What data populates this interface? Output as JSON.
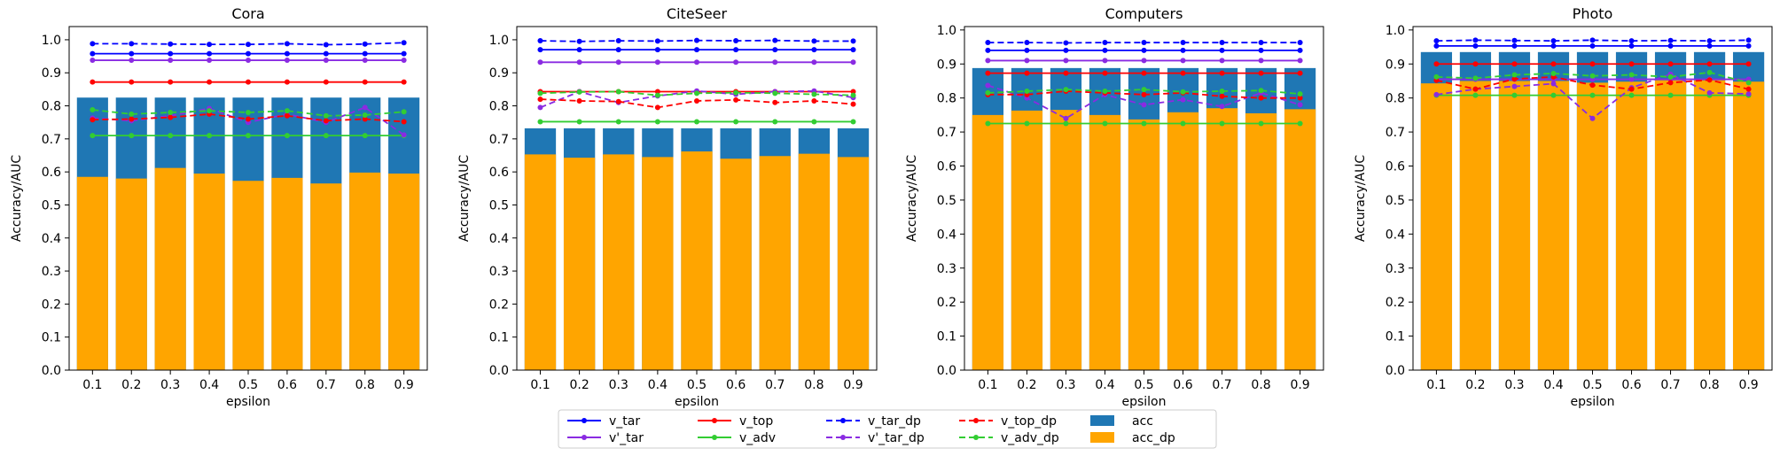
{
  "legend": {
    "items": [
      {
        "label": "v_tar",
        "color": "#0000ff",
        "style": "solid",
        "marker": "dot"
      },
      {
        "label": "v'_tar",
        "color": "#8a2be2",
        "style": "solid",
        "marker": "dot"
      },
      {
        "label": "v_top",
        "color": "#ff0000",
        "style": "solid",
        "marker": "dot"
      },
      {
        "label": "v_adv",
        "color": "#32cd32",
        "style": "solid",
        "marker": "dot"
      },
      {
        "label": "v_tar_dp",
        "color": "#0000ff",
        "style": "dashed",
        "marker": "dot"
      },
      {
        "label": "v'_tar_dp",
        "color": "#8a2be2",
        "style": "dashed",
        "marker": "dot"
      },
      {
        "label": "v_top_dp",
        "color": "#ff0000",
        "style": "dashed",
        "marker": "dot"
      },
      {
        "label": "v_adv_dp",
        "color": "#32cd32",
        "style": "dashed",
        "marker": "dot"
      },
      {
        "label": "acc",
        "color": "#1f77b4",
        "style": "patch"
      },
      {
        "label": "acc_dp",
        "color": "#ffa500",
        "style": "patch"
      }
    ],
    "placement": "bottom-center"
  },
  "chart_data": [
    {
      "type": "bar",
      "title": "Cora",
      "xlabel": "epsilon",
      "ylabel": "Accuracy/AUC",
      "categories": [
        "0.1",
        "0.2",
        "0.3",
        "0.4",
        "0.5",
        "0.6",
        "0.7",
        "0.8",
        "0.9"
      ],
      "ylim": [
        0,
        1.04
      ],
      "yticks": [
        "0.0",
        "0.1",
        "0.2",
        "0.3",
        "0.4",
        "0.5",
        "0.6",
        "0.7",
        "0.8",
        "0.9",
        "1.0"
      ],
      "grid": false,
      "bars": [
        {
          "name": "acc",
          "color": "#1f77b4",
          "values": [
            0.825,
            0.825,
            0.825,
            0.825,
            0.825,
            0.825,
            0.825,
            0.825,
            0.825
          ]
        },
        {
          "name": "acc_dp",
          "color": "#ffa500",
          "values": [
            0.585,
            0.58,
            0.612,
            0.595,
            0.573,
            0.582,
            0.565,
            0.598,
            0.595
          ]
        }
      ],
      "lines": [
        {
          "name": "v_tar",
          "color": "#0000ff",
          "dashed": false,
          "values": [
            0.958,
            0.958,
            0.958,
            0.958,
            0.958,
            0.958,
            0.958,
            0.958,
            0.958
          ]
        },
        {
          "name": "v'_tar",
          "color": "#8a2be2",
          "dashed": false,
          "values": [
            0.938,
            0.938,
            0.938,
            0.938,
            0.938,
            0.938,
            0.938,
            0.938,
            0.938
          ]
        },
        {
          "name": "v_top",
          "color": "#ff0000",
          "dashed": false,
          "values": [
            0.872,
            0.872,
            0.872,
            0.872,
            0.872,
            0.872,
            0.872,
            0.872,
            0.872
          ]
        },
        {
          "name": "v_adv",
          "color": "#32cd32",
          "dashed": false,
          "values": [
            0.71,
            0.71,
            0.71,
            0.71,
            0.71,
            0.71,
            0.71,
            0.71,
            0.71
          ]
        },
        {
          "name": "v_tar_dp",
          "color": "#0000ff",
          "dashed": true,
          "values": [
            0.988,
            0.988,
            0.987,
            0.986,
            0.986,
            0.988,
            0.985,
            0.987,
            0.991
          ]
        },
        {
          "name": "v'_tar_dp",
          "color": "#8a2be2",
          "dashed": true,
          "values": [
            0.763,
            0.755,
            0.77,
            0.792,
            0.75,
            0.775,
            0.75,
            0.795,
            0.712
          ]
        },
        {
          "name": "v_top_dp",
          "color": "#ff0000",
          "dashed": true,
          "values": [
            0.758,
            0.76,
            0.765,
            0.775,
            0.76,
            0.77,
            0.755,
            0.76,
            0.752
          ]
        },
        {
          "name": "v_adv_dp",
          "color": "#32cd32",
          "dashed": true,
          "values": [
            0.788,
            0.775,
            0.78,
            0.785,
            0.78,
            0.785,
            0.77,
            0.772,
            0.782
          ]
        }
      ]
    },
    {
      "type": "bar",
      "title": "CiteSeer",
      "xlabel": "epsilon",
      "ylabel": "Accuracy/AUC",
      "categories": [
        "0.1",
        "0.2",
        "0.3",
        "0.4",
        "0.5",
        "0.6",
        "0.7",
        "0.8",
        "0.9"
      ],
      "ylim": [
        0,
        1.04
      ],
      "yticks": [
        "0.0",
        "0.1",
        "0.2",
        "0.3",
        "0.4",
        "0.5",
        "0.6",
        "0.7",
        "0.8",
        "0.9",
        "1.0"
      ],
      "grid": false,
      "bars": [
        {
          "name": "acc",
          "color": "#1f77b4",
          "values": [
            0.732,
            0.732,
            0.732,
            0.732,
            0.732,
            0.732,
            0.732,
            0.732,
            0.732
          ]
        },
        {
          "name": "acc_dp",
          "color": "#ffa500",
          "values": [
            0.653,
            0.643,
            0.653,
            0.645,
            0.662,
            0.64,
            0.648,
            0.655,
            0.645
          ]
        }
      ],
      "lines": [
        {
          "name": "v_tar",
          "color": "#0000ff",
          "dashed": false,
          "values": [
            0.97,
            0.97,
            0.97,
            0.97,
            0.97,
            0.97,
            0.97,
            0.97,
            0.97
          ]
        },
        {
          "name": "v'_tar",
          "color": "#8a2be2",
          "dashed": false,
          "values": [
            0.932,
            0.932,
            0.932,
            0.932,
            0.932,
            0.932,
            0.932,
            0.932,
            0.932
          ]
        },
        {
          "name": "v_top",
          "color": "#ff0000",
          "dashed": false,
          "values": [
            0.843,
            0.843,
            0.843,
            0.843,
            0.843,
            0.843,
            0.843,
            0.843,
            0.843
          ]
        },
        {
          "name": "v_adv",
          "color": "#32cd32",
          "dashed": false,
          "values": [
            0.752,
            0.752,
            0.752,
            0.752,
            0.752,
            0.752,
            0.752,
            0.752,
            0.752
          ]
        },
        {
          "name": "v_tar_dp",
          "color": "#0000ff",
          "dashed": true,
          "values": [
            0.997,
            0.995,
            0.997,
            0.996,
            0.998,
            0.997,
            0.998,
            0.996,
            0.996
          ]
        },
        {
          "name": "v'_tar_dp",
          "color": "#8a2be2",
          "dashed": true,
          "values": [
            0.795,
            0.843,
            0.81,
            0.83,
            0.845,
            0.835,
            0.843,
            0.845,
            0.825
          ]
        },
        {
          "name": "v_top_dp",
          "color": "#ff0000",
          "dashed": true,
          "values": [
            0.82,
            0.815,
            0.813,
            0.795,
            0.815,
            0.818,
            0.81,
            0.815,
            0.805
          ]
        },
        {
          "name": "v_adv_dp",
          "color": "#32cd32",
          "dashed": true,
          "values": [
            0.838,
            0.842,
            0.843,
            0.832,
            0.838,
            0.84,
            0.838,
            0.835,
            0.832
          ]
        }
      ]
    },
    {
      "type": "bar",
      "title": "Computers",
      "xlabel": "epsilon",
      "ylabel": "Accuracy/AUC",
      "categories": [
        "0.1",
        "0.2",
        "0.3",
        "0.4",
        "0.5",
        "0.6",
        "0.7",
        "0.8",
        "0.9"
      ],
      "ylim": [
        0,
        1.01
      ],
      "yticks": [
        "0.0",
        "0.1",
        "0.2",
        "0.3",
        "0.4",
        "0.5",
        "0.6",
        "0.7",
        "0.8",
        "0.9",
        "1.0"
      ],
      "grid": false,
      "bars": [
        {
          "name": "acc",
          "color": "#1f77b4",
          "values": [
            0.888,
            0.888,
            0.888,
            0.888,
            0.888,
            0.888,
            0.888,
            0.888,
            0.888
          ]
        },
        {
          "name": "acc_dp",
          "color": "#ffa500",
          "values": [
            0.75,
            0.763,
            0.765,
            0.75,
            0.737,
            0.758,
            0.77,
            0.755,
            0.767
          ]
        }
      ],
      "lines": [
        {
          "name": "v_tar",
          "color": "#0000ff",
          "dashed": false,
          "values": [
            0.94,
            0.94,
            0.94,
            0.94,
            0.94,
            0.94,
            0.94,
            0.94,
            0.94
          ]
        },
        {
          "name": "v'_tar",
          "color": "#8a2be2",
          "dashed": false,
          "values": [
            0.91,
            0.91,
            0.91,
            0.91,
            0.91,
            0.91,
            0.91,
            0.91,
            0.91
          ]
        },
        {
          "name": "v_top",
          "color": "#ff0000",
          "dashed": false,
          "values": [
            0.873,
            0.873,
            0.873,
            0.873,
            0.873,
            0.873,
            0.873,
            0.873,
            0.873
          ]
        },
        {
          "name": "v_adv",
          "color": "#32cd32",
          "dashed": false,
          "values": [
            0.725,
            0.725,
            0.725,
            0.725,
            0.725,
            0.725,
            0.725,
            0.725,
            0.725
          ]
        },
        {
          "name": "v_tar_dp",
          "color": "#0000ff",
          "dashed": true,
          "values": [
            0.963,
            0.963,
            0.962,
            0.963,
            0.963,
            0.963,
            0.963,
            0.963,
            0.963
          ]
        },
        {
          "name": "v'_tar_dp",
          "color": "#8a2be2",
          "dashed": true,
          "values": [
            0.837,
            0.8,
            0.74,
            0.81,
            0.78,
            0.795,
            0.775,
            0.815,
            0.78
          ]
        },
        {
          "name": "v_top_dp",
          "color": "#ff0000",
          "dashed": true,
          "values": [
            0.81,
            0.81,
            0.82,
            0.815,
            0.81,
            0.815,
            0.805,
            0.8,
            0.8
          ]
        },
        {
          "name": "v_adv_dp",
          "color": "#32cd32",
          "dashed": true,
          "values": [
            0.815,
            0.82,
            0.825,
            0.82,
            0.825,
            0.818,
            0.82,
            0.822,
            0.812
          ]
        }
      ]
    },
    {
      "type": "bar",
      "title": "Photo",
      "xlabel": "epsilon",
      "ylabel": "Accuracy/AUC",
      "categories": [
        "0.1",
        "0.2",
        "0.3",
        "0.4",
        "0.5",
        "0.6",
        "0.7",
        "0.8",
        "0.9"
      ],
      "ylim": [
        0,
        1.01
      ],
      "yticks": [
        "0.0",
        "0.1",
        "0.2",
        "0.3",
        "0.4",
        "0.5",
        "0.6",
        "0.7",
        "0.8",
        "0.9",
        "1.0"
      ],
      "grid": false,
      "bars": [
        {
          "name": "acc",
          "color": "#1f77b4",
          "values": [
            0.935,
            0.935,
            0.935,
            0.935,
            0.935,
            0.935,
            0.935,
            0.935,
            0.935
          ]
        },
        {
          "name": "acc_dp",
          "color": "#ffa500",
          "values": [
            0.843,
            0.85,
            0.85,
            0.85,
            0.845,
            0.848,
            0.852,
            0.852,
            0.848
          ]
        }
      ],
      "lines": [
        {
          "name": "v_tar",
          "color": "#0000ff",
          "dashed": false,
          "values": [
            0.953,
            0.953,
            0.953,
            0.953,
            0.953,
            0.953,
            0.953,
            0.953,
            0.953
          ]
        },
        {
          "name": "v'_tar",
          "color": "#8a2be2",
          "dashed": false,
          "values": [
            0.855,
            0.855,
            0.855,
            0.855,
            0.855,
            0.855,
            0.855,
            0.855,
            0.855
          ]
        },
        {
          "name": "v_top",
          "color": "#ff0000",
          "dashed": false,
          "values": [
            0.9,
            0.9,
            0.9,
            0.9,
            0.9,
            0.9,
            0.9,
            0.9,
            0.9
          ]
        },
        {
          "name": "v_adv",
          "color": "#32cd32",
          "dashed": false,
          "values": [
            0.808,
            0.808,
            0.808,
            0.808,
            0.808,
            0.808,
            0.808,
            0.808,
            0.808
          ]
        },
        {
          "name": "v_tar_dp",
          "color": "#0000ff",
          "dashed": true,
          "values": [
            0.968,
            0.97,
            0.969,
            0.968,
            0.97,
            0.968,
            0.969,
            0.968,
            0.97
          ]
        },
        {
          "name": "v'_tar_dp",
          "color": "#8a2be2",
          "dashed": true,
          "values": [
            0.81,
            0.826,
            0.834,
            0.842,
            0.74,
            0.83,
            0.87,
            0.815,
            0.812
          ]
        },
        {
          "name": "v_top_dp",
          "color": "#ff0000",
          "dashed": true,
          "values": [
            0.852,
            0.826,
            0.856,
            0.862,
            0.838,
            0.826,
            0.845,
            0.853,
            0.826
          ]
        },
        {
          "name": "v_adv_dp",
          "color": "#32cd32",
          "dashed": true,
          "values": [
            0.862,
            0.858,
            0.868,
            0.872,
            0.865,
            0.868,
            0.862,
            0.875,
            0.845
          ]
        }
      ]
    }
  ]
}
